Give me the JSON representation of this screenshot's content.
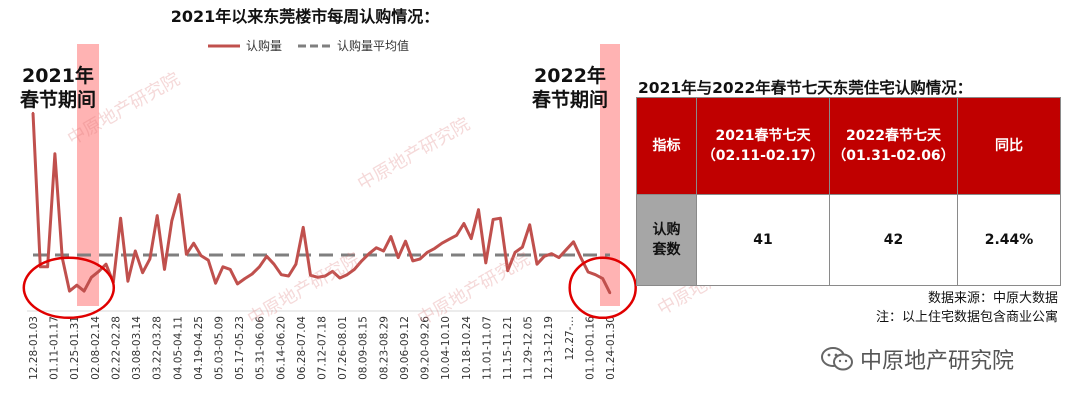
{
  "chart_data": {
    "type": "line",
    "title": "2021年以来东莞楼市每周认购情况：",
    "series": [
      {
        "name": "认购量",
        "color": "#c0504d",
        "values": [
          1400,
          230,
          230,
          1090,
          300,
          45,
          90,
          45,
          150,
          195,
          250,
          110,
          600,
          120,
          350,
          185,
          290,
          620,
          210,
          580,
          780,
          325,
          410,
          315,
          280,
          105,
          230,
          210,
          100,
          140,
          175,
          230,
          310,
          250,
          170,
          160,
          250,
          530,
          165,
          150,
          160,
          195,
          145,
          170,
          210,
          275,
          330,
          375,
          350,
          460,
          300,
          425,
          275,
          290,
          340,
          370,
          410,
          440,
          470,
          560,
          445,
          665,
          260,
          590,
          600,
          200,
          340,
          380,
          550,
          250,
          310,
          330,
          300,
          360,
          420,
          300,
          190,
          170,
          140,
          30
        ]
      },
      {
        "name": "认购量平均值",
        "color": "#7f7f7f",
        "dashed": true,
        "values": [
          320
        ]
      }
    ],
    "x_tick_labels": [
      "12.28-01.03",
      "01.11-01.17",
      "01.25-01.31",
      "02.08-02.14",
      "02.22-02.28",
      "03.08-03.14",
      "03.22-03.28",
      "04.05-04.11",
      "04.19-04.25",
      "05.03-05.09",
      "05.17-05.23",
      "05.31-06.06",
      "06.14-06.20",
      "06.28-07.04",
      "07.12-07.18",
      "07.26-08.01",
      "08.09-08.15",
      "08.23-08.29",
      "09.06-09.12",
      "09.20-09.26",
      "10.04-10.10",
      "10.18-10.24",
      "11.01-11.07",
      "11.15-11.21",
      "11.29-12.05",
      "12.13-12.19",
      "12.27-…",
      "01.10-01.16",
      "01.24-01.30"
    ],
    "highlight_bands": [
      {
        "label_line1": "2021年",
        "label_line2": "春节期间"
      },
      {
        "label_line1": "2022年",
        "label_line2": "春节期间"
      }
    ],
    "band_color": "#ffb3b3",
    "circle_color": "#e00000",
    "ylim": [
      0,
      1500
    ],
    "grid": false
  },
  "table": {
    "title": "2021年与2022年春节七天东莞住宅认购情况：",
    "header": [
      {
        "line1": "指标",
        "line2": ""
      },
      {
        "line1": "2021春节七天",
        "line2": "（02.11-02.17）"
      },
      {
        "line1": "2022春节七天",
        "line2": "（01.31-02.06）"
      },
      {
        "line1": "同比",
        "line2": ""
      }
    ],
    "row": {
      "head_line1": "认购",
      "head_line2": "套数",
      "v2021": "41",
      "v2022": "42",
      "yoy": "2.44%"
    },
    "source": "数据来源：中原大数据",
    "note": "注：以上住宅数据包含商业公寓"
  },
  "brand": {
    "name": "中原地产研究院",
    "icon": "wechat-icon"
  },
  "watermark": "中原地产研究院",
  "colors": {
    "accent_red": "#c00000",
    "row_gray": "#a6a6a6",
    "yoy_red": "#ff0000"
  }
}
